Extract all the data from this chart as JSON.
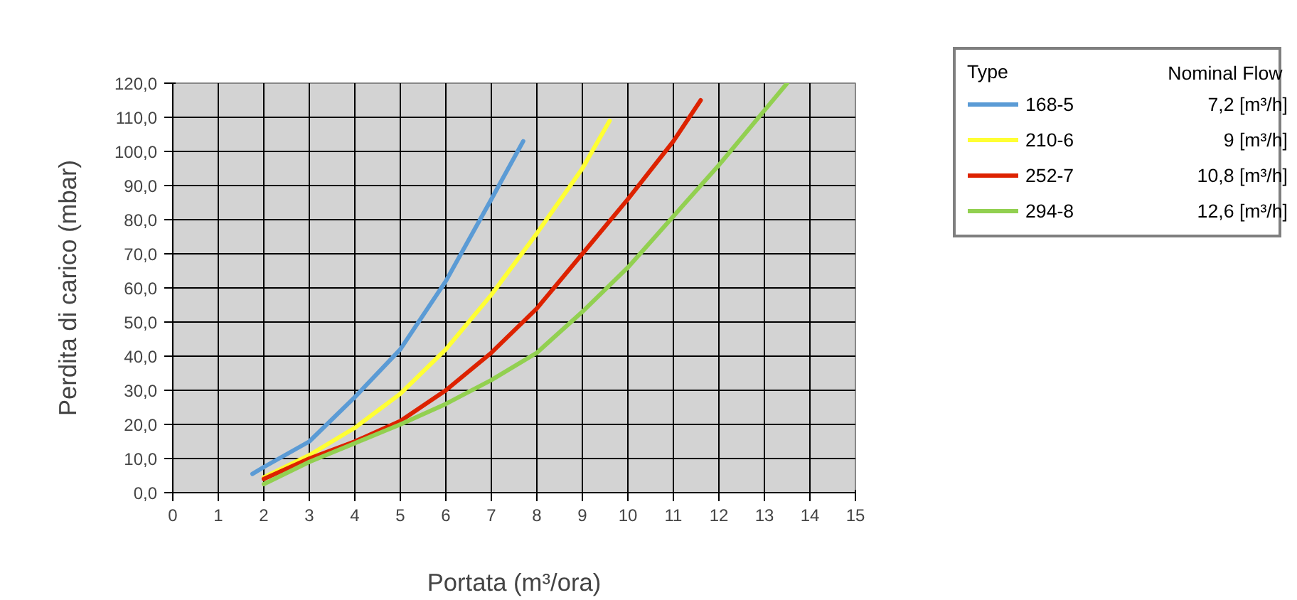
{
  "chart_data": {
    "type": "line",
    "xlabel": "Portata (m³/ora)",
    "ylabel": "Perdita di carico (mbar)",
    "legend_title": "Type",
    "annotations": [
      "Nominal  Flow",
      "7,2 [m³/h]",
      "9 [m³/h]",
      "10,8 [m³/h]",
      "12,6 [m³/h]"
    ],
    "xlim": [
      0,
      15
    ],
    "xticks": [
      0,
      1,
      2,
      3,
      4,
      5,
      6,
      7,
      8,
      9,
      10,
      11,
      12,
      13,
      14,
      15
    ],
    "ylim": [
      0,
      120
    ],
    "yticks": [
      {
        "value": 0,
        "label": "0,0"
      },
      {
        "value": 10,
        "label": "10,0"
      },
      {
        "value": 20,
        "label": "20,0"
      },
      {
        "value": 30,
        "label": "30,0"
      },
      {
        "value": 40,
        "label": "40,0"
      },
      {
        "value": 50,
        "label": "50,0"
      },
      {
        "value": 60,
        "label": "60,0"
      },
      {
        "value": 70,
        "label": "70,0"
      },
      {
        "value": 80,
        "label": "80,0"
      },
      {
        "value": 90,
        "label": "90,0"
      },
      {
        "value": 100,
        "label": "100,0"
      },
      {
        "value": 110,
        "label": "110,0"
      },
      {
        "value": 120,
        "label": "120,0"
      }
    ],
    "grid": true,
    "legend": "right",
    "marker": "none",
    "line_style": "solid",
    "series": [
      {
        "name": "168-5",
        "color": "#5b9bd5",
        "x": [
          1.75,
          2,
          3,
          4,
          5,
          6,
          7,
          7.7
        ],
        "values": [
          5.5,
          7.5,
          15,
          28,
          42,
          62,
          86,
          103
        ]
      },
      {
        "name": "210-6",
        "color": "#ffff33",
        "x": [
          2,
          3,
          4,
          5,
          6,
          7,
          8,
          9,
          9.6
        ],
        "values": [
          4.5,
          11,
          19,
          29,
          42,
          58,
          76,
          95,
          109
        ]
      },
      {
        "name": "252-7",
        "color": "#dd2200",
        "x": [
          2,
          3,
          4,
          5,
          6,
          7,
          8,
          9,
          10,
          11,
          11.6
        ],
        "values": [
          4,
          10,
          15,
          21,
          30,
          41,
          54,
          70,
          86,
          103,
          115
        ]
      },
      {
        "name": "294-8",
        "color": "#92d050",
        "x": [
          2,
          3,
          4,
          5,
          6,
          7,
          8,
          9,
          10,
          11,
          12,
          13,
          13.5
        ],
        "values": [
          2.5,
          9,
          14.5,
          20,
          26,
          33,
          41,
          53,
          66,
          81,
          96,
          112,
          120
        ]
      }
    ]
  }
}
